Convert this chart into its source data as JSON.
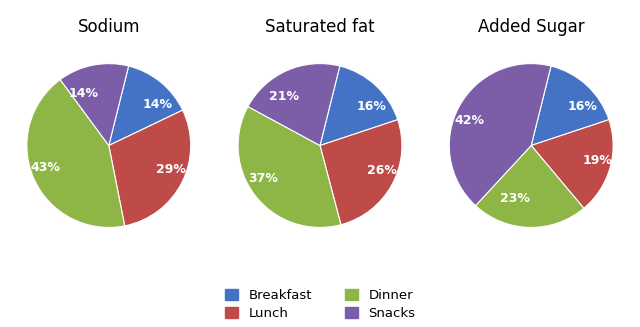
{
  "charts": [
    {
      "title": "Sodium",
      "values": [
        14,
        29,
        43,
        14
      ],
      "labels": [
        "14%",
        "29%",
        "43%",
        "14%"
      ],
      "startangle": 76
    },
    {
      "title": "Saturated fat",
      "values": [
        16,
        26,
        37,
        21
      ],
      "labels": [
        "16%",
        "26%",
        "37%",
        "21%"
      ],
      "startangle": 76
    },
    {
      "title": "Added Sugar",
      "values": [
        16,
        19,
        23,
        42
      ],
      "labels": [
        "16%",
        "19%",
        "23%",
        "42%"
      ],
      "startangle": 76
    }
  ],
  "colors": [
    "#4472C4",
    "#BE4B48",
    "#8DB646",
    "#7B5EA7"
  ],
  "legend_labels": [
    "Breakfast",
    "Lunch",
    "Dinner",
    "Snacks"
  ],
  "legend_colors": [
    "#4472C4",
    "#BE4B48",
    "#8DB646",
    "#7B5EA7"
  ],
  "text_color": "#FFFFFF",
  "title_fontsize": 12,
  "label_fontsize": 9,
  "legend_fontsize": 9.5,
  "background_color": "#FFFFFF"
}
